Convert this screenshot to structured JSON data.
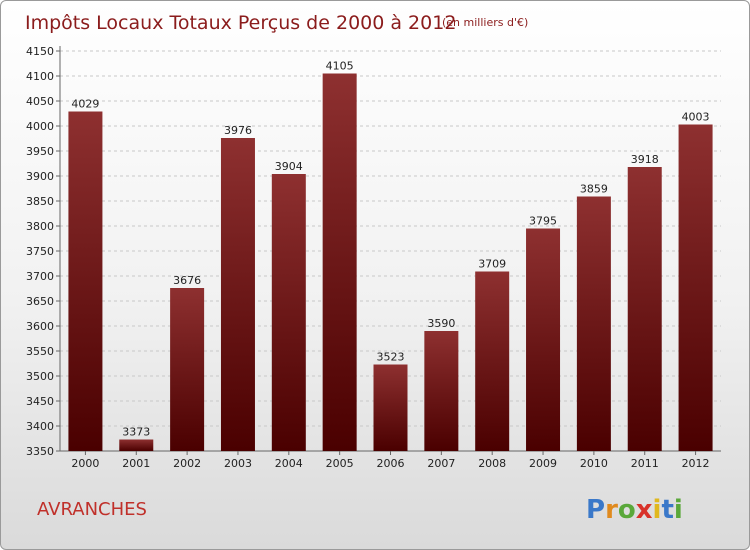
{
  "chart_data": {
    "type": "bar",
    "title": "Impôts Locaux Totaux Perçus de 2000 à 2012",
    "subtitle": "(en milliers d'€)",
    "categories": [
      "2000",
      "2001",
      "2002",
      "2003",
      "2004",
      "2005",
      "2006",
      "2007",
      "2008",
      "2009",
      "2010",
      "2011",
      "2012"
    ],
    "values": [
      4029,
      3373,
      3676,
      3976,
      3904,
      4105,
      3523,
      3590,
      3709,
      3795,
      3859,
      3918,
      4003
    ],
    "ylim": [
      3350,
      4150
    ],
    "yticks": [
      "3350",
      "3400",
      "3450",
      "3500",
      "3550",
      "3600",
      "3650",
      "3700",
      "3750",
      "3800",
      "3850",
      "3900",
      "3950",
      "4000",
      "4050",
      "4100",
      "4150"
    ],
    "grid": true,
    "bar_color": "#7a1a1a"
  },
  "footer": {
    "city": "AVRANCHES",
    "logo": "Proxiti"
  }
}
